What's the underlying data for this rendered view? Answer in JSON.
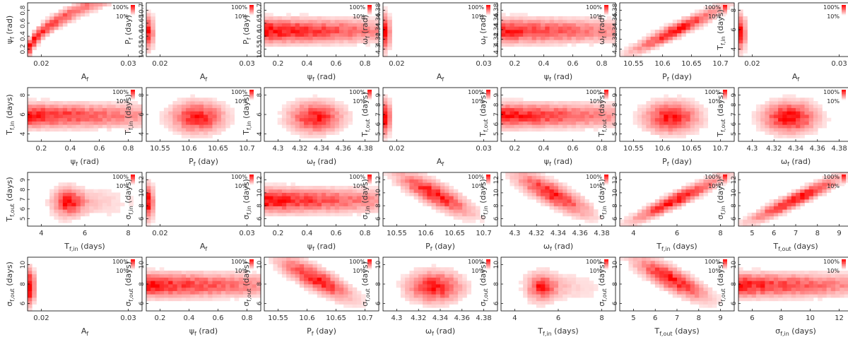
{
  "figure": {
    "legend_max": "100%",
    "legend_min": "10%"
  },
  "chart_data": [
    {
      "type": "heatmap",
      "xlabel": "A",
      "xsub": "f",
      "ylabel": "ψ",
      "ysub": "f",
      "yunit": "(rad)",
      "xticks": [
        "0.02",
        "0.03"
      ],
      "yticks": [
        "0.2",
        "0.4",
        "0.6",
        "0.8"
      ],
      "pattern": "curve"
    },
    {
      "type": "heatmap",
      "xlabel": "A",
      "xsub": "f",
      "ylabel": "P",
      "ysub": "f",
      "yunit": "(day)",
      "xticks": [
        "0.02",
        "0.03"
      ],
      "yticks": [
        "10.55",
        "10.6",
        "10.65",
        "10.7"
      ],
      "pattern": "edge"
    },
    {
      "type": "heatmap",
      "xlabel": "ψ",
      "xsub": "f",
      "xunit": "(rad)",
      "ylabel": "P",
      "ysub": "f",
      "yunit": "(day)",
      "xticks": [
        "0.2",
        "0.4",
        "0.6",
        "0.8"
      ],
      "yticks": [
        "10.55",
        "10.6",
        "10.65",
        "10.7"
      ],
      "pattern": "band"
    },
    {
      "type": "heatmap",
      "xlabel": "A",
      "xsub": "f",
      "ylabel": "ω",
      "ysub": "f",
      "yunit": "(rad)",
      "xticks": [
        "0.02",
        "0.03"
      ],
      "yticks": [
        "4.3",
        "4.32",
        "4.34",
        "4.36",
        "4.38"
      ],
      "pattern": "edge"
    },
    {
      "type": "heatmap",
      "xlabel": "ψ",
      "xsub": "f",
      "xunit": "(rad)",
      "ylabel": "ω",
      "ysub": "f",
      "yunit": "(rad)",
      "xticks": [
        "0.2",
        "0.4",
        "0.6",
        "0.8"
      ],
      "yticks": [
        "4.3",
        "4.32",
        "4.34",
        "4.36",
        "4.38"
      ],
      "pattern": "band"
    },
    {
      "type": "heatmap",
      "xlabel": "P",
      "xsub": "f",
      "xunit": "(day)",
      "ylabel": "ω",
      "ysub": "f",
      "yunit": "(rad)",
      "xticks": [
        "10.55",
        "10.6",
        "10.65",
        "10.7"
      ],
      "yticks": [
        "4.3",
        "4.32",
        "4.34",
        "4.36",
        "4.38"
      ],
      "pattern": "diagpos"
    },
    {
      "type": "heatmap",
      "xlabel": "A",
      "xsub": "f",
      "ylabel": "T",
      "ysub": "f,in",
      "yunit": "(days)",
      "xticks": [
        "0.02",
        "0.03"
      ],
      "yticks": [
        "4",
        "6",
        "8"
      ],
      "pattern": "edge"
    },
    {
      "type": "heatmap",
      "xlabel": "ψ",
      "xsub": "f",
      "xunit": "(rad)",
      "ylabel": "T",
      "ysub": "f,in",
      "yunit": "(days)",
      "xticks": [
        "0.2",
        "0.4",
        "0.6",
        "0.8"
      ],
      "yticks": [
        "4",
        "6",
        "8"
      ],
      "pattern": "band"
    },
    {
      "type": "heatmap",
      "xlabel": "P",
      "xsub": "f",
      "xunit": "(day)",
      "ylabel": "T",
      "ysub": "f,in",
      "yunit": "(days)",
      "xticks": [
        "10.55",
        "10.6",
        "10.65",
        "10.7"
      ],
      "yticks": [
        "4",
        "6",
        "8"
      ],
      "pattern": "blob"
    },
    {
      "type": "heatmap",
      "xlabel": "ω",
      "xsub": "f",
      "xunit": "(rad)",
      "ylabel": "T",
      "ysub": "f,in",
      "yunit": "(days)",
      "xticks": [
        "4.3",
        "4.32",
        "4.34",
        "4.36",
        "4.38"
      ],
      "yticks": [
        "4",
        "6",
        "8"
      ],
      "pattern": "blob"
    },
    {
      "type": "heatmap",
      "xlabel": "A",
      "xsub": "f",
      "ylabel": "T",
      "ysub": "f,out",
      "yunit": "(days)",
      "xticks": [
        "0.02",
        "0.03"
      ],
      "yticks": [
        "5",
        "6",
        "7",
        "8",
        "9"
      ],
      "pattern": "edge"
    },
    {
      "type": "heatmap",
      "xlabel": "ψ",
      "xsub": "f",
      "xunit": "(rad)",
      "ylabel": "T",
      "ysub": "f,out",
      "yunit": "(days)",
      "xticks": [
        "0.2",
        "0.4",
        "0.6",
        "0.8"
      ],
      "yticks": [
        "5",
        "6",
        "7",
        "8",
        "9"
      ],
      "pattern": "band"
    },
    {
      "type": "heatmap",
      "xlabel": "P",
      "xsub": "f",
      "xunit": "(day)",
      "ylabel": "T",
      "ysub": "f,out",
      "yunit": "(days)",
      "xticks": [
        "10.55",
        "10.6",
        "10.65",
        "10.7"
      ],
      "yticks": [
        "5",
        "6",
        "7",
        "8",
        "9"
      ],
      "pattern": "blob"
    },
    {
      "type": "heatmap",
      "xlabel": "ω",
      "xsub": "f",
      "xunit": "(rad)",
      "ylabel": "T",
      "ysub": "f,out",
      "yunit": "(days)",
      "xticks": [
        "4.3",
        "4.32",
        "4.34",
        "4.36",
        "4.38"
      ],
      "yticks": [
        "5",
        "6",
        "7",
        "8",
        "9"
      ],
      "pattern": "blob"
    },
    {
      "type": "heatmap",
      "xlabel": "T",
      "xsub": "f,in",
      "xunit": "(days)",
      "ylabel": "T",
      "ysub": "f,out",
      "yunit": "(days)",
      "xticks": [
        "4",
        "6",
        "8"
      ],
      "yticks": [
        "5",
        "6",
        "7",
        "8",
        "9"
      ],
      "pattern": "triangle"
    },
    {
      "type": "heatmap",
      "xlabel": "A",
      "xsub": "f",
      "ylabel": "σ",
      "ysub": "f,in",
      "yunit": "(days)",
      "xticks": [
        "0.02",
        "0.03"
      ],
      "yticks": [
        "6",
        "8",
        "10",
        "12"
      ],
      "pattern": "edge"
    },
    {
      "type": "heatmap",
      "xlabel": "ψ",
      "xsub": "f",
      "xunit": "(rad)",
      "ylabel": "σ",
      "ysub": "f,in",
      "yunit": "(days)",
      "xticks": [
        "0.2",
        "0.4",
        "0.6",
        "0.8"
      ],
      "yticks": [
        "6",
        "8",
        "10",
        "12"
      ],
      "pattern": "band"
    },
    {
      "type": "heatmap",
      "xlabel": "P",
      "xsub": "f",
      "xunit": "(day)",
      "ylabel": "σ",
      "ysub": "f,in",
      "yunit": "(days)",
      "xticks": [
        "10.55",
        "10.6",
        "10.65",
        "10.7"
      ],
      "yticks": [
        "6",
        "8",
        "10",
        "12"
      ],
      "pattern": "diagneg"
    },
    {
      "type": "heatmap",
      "xlabel": "ω",
      "xsub": "f",
      "xunit": "(rad)",
      "ylabel": "σ",
      "ysub": "f,in",
      "yunit": "(days)",
      "xticks": [
        "4.3",
        "4.32",
        "4.34",
        "4.36",
        "4.38"
      ],
      "yticks": [
        "6",
        "8",
        "10",
        "12"
      ],
      "pattern": "diagneg"
    },
    {
      "type": "heatmap",
      "xlabel": "T",
      "xsub": "f,in",
      "xunit": "(days)",
      "ylabel": "σ",
      "ysub": "f,in",
      "yunit": "(days)",
      "xticks": [
        "4",
        "6",
        "8"
      ],
      "yticks": [
        "6",
        "8",
        "10",
        "12"
      ],
      "pattern": "diagpos"
    },
    {
      "type": "heatmap",
      "xlabel": "T",
      "xsub": "f,out",
      "xunit": "(days)",
      "ylabel": "σ",
      "ysub": "f,in",
      "yunit": "(days)",
      "xticks": [
        "5",
        "6",
        "7",
        "8",
        "9"
      ],
      "yticks": [
        "6",
        "8",
        "10",
        "12"
      ],
      "pattern": "diagpos"
    },
    {
      "type": "heatmap",
      "xlabel": "A",
      "xsub": "f",
      "ylabel": "σ",
      "ysub": "f,out",
      "yunit": "(days)",
      "xticks": [
        "0.02",
        "0.03"
      ],
      "yticks": [
        "6",
        "8",
        "10"
      ],
      "pattern": "edge"
    },
    {
      "type": "heatmap",
      "xlabel": "ψ",
      "xsub": "f",
      "xunit": "(rad)",
      "ylabel": "σ",
      "ysub": "f,out",
      "yunit": "(days)",
      "xticks": [
        "0.2",
        "0.4",
        "0.6",
        "0.8"
      ],
      "yticks": [
        "6",
        "8",
        "10"
      ],
      "pattern": "band"
    },
    {
      "type": "heatmap",
      "xlabel": "P",
      "xsub": "f",
      "xunit": "(day)",
      "ylabel": "σ",
      "ysub": "f,out",
      "yunit": "(days)",
      "xticks": [
        "10.55",
        "10.6",
        "10.65",
        "10.7"
      ],
      "yticks": [
        "6",
        "8",
        "10"
      ],
      "pattern": "diagneg"
    },
    {
      "type": "heatmap",
      "xlabel": "ω",
      "xsub": "f",
      "xunit": "(rad)",
      "ylabel": "σ",
      "ysub": "f,out",
      "yunit": "(days)",
      "xticks": [
        "4.3",
        "4.32",
        "4.34",
        "4.36",
        "4.38"
      ],
      "yticks": [
        "6",
        "8",
        "10"
      ],
      "pattern": "blob"
    },
    {
      "type": "heatmap",
      "xlabel": "T",
      "xsub": "f,in",
      "xunit": "(days)",
      "ylabel": "σ",
      "ysub": "f,out",
      "yunit": "(days)",
      "xticks": [
        "4",
        "6",
        "8"
      ],
      "yticks": [
        "6",
        "8",
        "10"
      ],
      "pattern": "triangle"
    },
    {
      "type": "heatmap",
      "xlabel": "T",
      "xsub": "f,out",
      "xunit": "(days)",
      "ylabel": "σ",
      "ysub": "f,out",
      "yunit": "(days)",
      "xticks": [
        "5",
        "6",
        "7",
        "8",
        "9"
      ],
      "yticks": [
        "6",
        "8",
        "10"
      ],
      "pattern": "diagneg"
    },
    {
      "type": "heatmap",
      "xlabel": "σ",
      "xsub": "f,in",
      "xunit": "(days)",
      "ylabel": "σ",
      "ysub": "f,out",
      "yunit": "(days)",
      "xticks": [
        "6",
        "8",
        "10",
        "12"
      ],
      "yticks": [
        "6",
        "8",
        "10"
      ],
      "pattern": "band"
    }
  ]
}
